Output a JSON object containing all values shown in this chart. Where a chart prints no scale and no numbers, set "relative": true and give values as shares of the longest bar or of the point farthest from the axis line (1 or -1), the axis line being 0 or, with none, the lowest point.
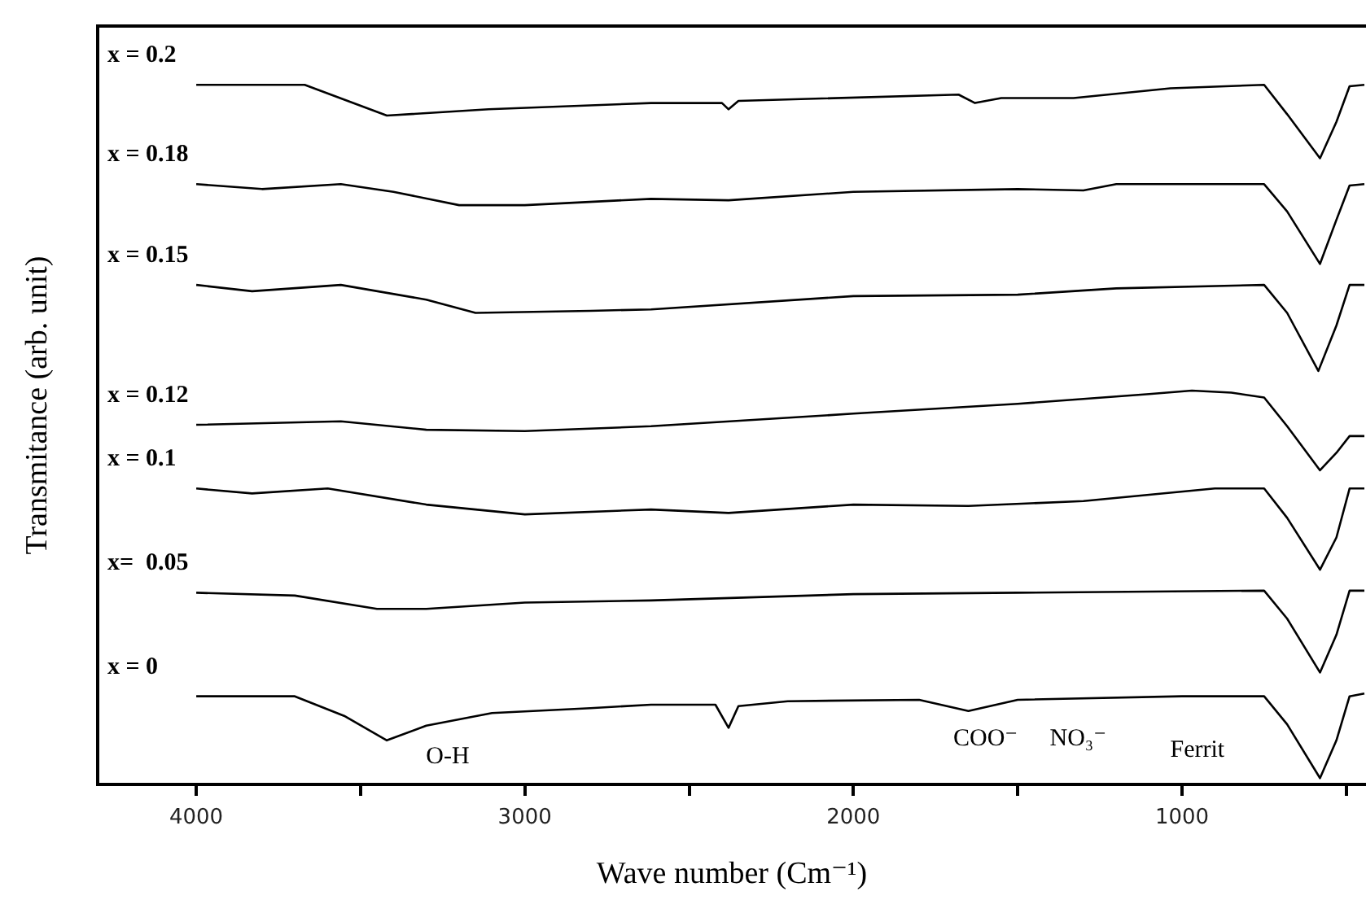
{
  "chart_data": {
    "type": "line",
    "relative": true,
    "xlabel": "Wave number (Cm⁻¹)",
    "ylabel": "Transmitance (arb. unit)",
    "xlim": [
      4300,
      440
    ],
    "xticks": [
      4000,
      {
        "value": 3500,
        "label": null
      },
      3000,
      {
        "value": 2500,
        "label": null
      },
      2000,
      {
        "value": 1500,
        "label": null
      },
      1000,
      {
        "value": 500,
        "label": null
      }
    ],
    "grid": false,
    "legend": false,
    "marker": "none",
    "line_style": "solid",
    "series": [
      {
        "name": "x = 0.2",
        "color": "#000000",
        "x": [
          4000,
          3670,
          3420,
          3110,
          2616,
          2400,
          2380,
          2350,
          1680,
          1630,
          1550,
          1330,
          1035,
          750,
          680,
          580,
          530,
          490,
          445
        ],
        "values": [
          1.0,
          1.0,
          0.956,
          0.965,
          0.974,
          0.974,
          0.965,
          0.977,
          0.986,
          0.974,
          0.981,
          0.981,
          0.995,
          1.0,
          0.958,
          0.895,
          0.947,
          0.998,
          1.0
        ]
      },
      {
        "name": "x = 0.18",
        "color": "#000000",
        "x": [
          4000,
          3800,
          3560,
          3400,
          3200,
          3000,
          2616,
          2380,
          2000,
          1500,
          1300,
          1200,
          750,
          680,
          580,
          530,
          490,
          445
        ],
        "values": [
          0.858,
          0.851,
          0.858,
          0.847,
          0.828,
          0.828,
          0.837,
          0.835,
          0.847,
          0.851,
          0.849,
          0.858,
          0.858,
          0.819,
          0.744,
          0.807,
          0.856,
          0.858
        ]
      },
      {
        "name": "x = 0.15",
        "color": "#000000",
        "x": [
          4000,
          3830,
          3560,
          3300,
          3150,
          2800,
          2616,
          2000,
          1500,
          1200,
          750,
          680,
          585,
          530,
          490,
          445
        ],
        "values": [
          0.714,
          0.705,
          0.714,
          0.693,
          0.674,
          0.677,
          0.679,
          0.698,
          0.7,
          0.709,
          0.714,
          0.674,
          0.591,
          0.656,
          0.714,
          0.714
        ]
      },
      {
        "name": "x = 0.12",
        "color": "#000000",
        "x": [
          4000,
          3560,
          3300,
          3000,
          2616,
          2000,
          1500,
          1100,
          970,
          850,
          750,
          680,
          580,
          530,
          490,
          445
        ],
        "values": [
          0.514,
          0.519,
          0.507,
          0.505,
          0.512,
          0.53,
          0.544,
          0.558,
          0.563,
          0.56,
          0.553,
          0.512,
          0.449,
          0.474,
          0.498,
          0.498
        ]
      },
      {
        "name": "x = 0.1",
        "color": "#000000",
        "x": [
          4000,
          3830,
          3600,
          3300,
          3000,
          2616,
          2380,
          2000,
          1650,
          1300,
          900,
          750,
          680,
          580,
          530,
          490,
          445
        ],
        "values": [
          0.423,
          0.416,
          0.423,
          0.4,
          0.386,
          0.393,
          0.388,
          0.4,
          0.398,
          0.405,
          0.423,
          0.423,
          0.381,
          0.307,
          0.353,
          0.423,
          0.423
        ]
      },
      {
        "name": "x=  0.05",
        "color": "#000000",
        "x": [
          4000,
          3700,
          3450,
          3300,
          3000,
          2616,
          2000,
          1500,
          750,
          680,
          580,
          530,
          490,
          445
        ],
        "values": [
          0.274,
          0.27,
          0.251,
          0.251,
          0.26,
          0.263,
          0.272,
          0.274,
          0.277,
          0.237,
          0.16,
          0.214,
          0.277,
          0.277
        ]
      },
      {
        "name": "x = 0",
        "color": "#000000",
        "x": [
          4000,
          3700,
          3550,
          3420,
          3300,
          3100,
          2800,
          2616,
          2420,
          2380,
          2350,
          2200,
          1800,
          1650,
          1500,
          1000,
          750,
          680,
          580,
          530,
          490,
          445
        ],
        "values": [
          0.126,
          0.126,
          0.098,
          0.063,
          0.084,
          0.102,
          0.109,
          0.114,
          0.114,
          0.081,
          0.112,
          0.119,
          0.121,
          0.105,
          0.121,
          0.126,
          0.126,
          0.086,
          0.009,
          0.063,
          0.126,
          0.13
        ]
      }
    ],
    "annotations": [
      "O-H",
      "COO⁻",
      "NO₃⁻",
      "Ferrit"
    ]
  }
}
